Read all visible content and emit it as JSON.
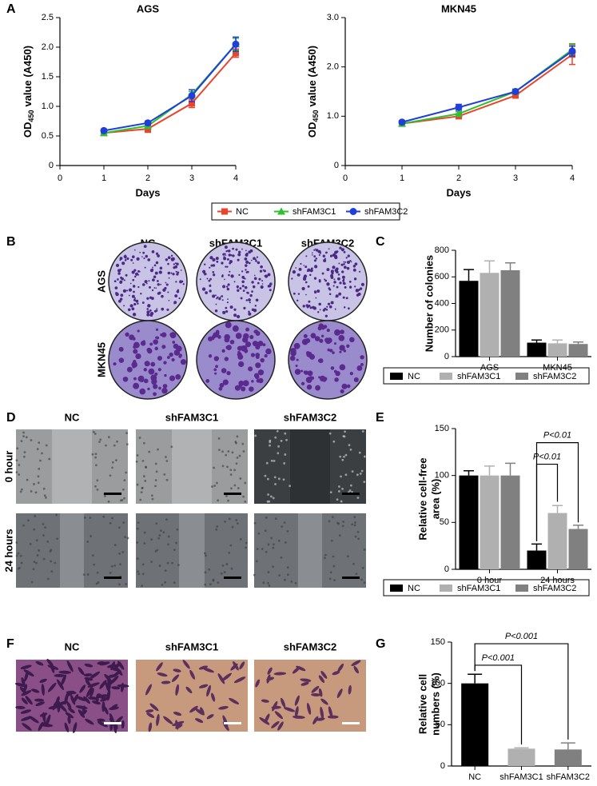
{
  "panel_labels": [
    "A",
    "B",
    "C",
    "D",
    "E",
    "F",
    "G"
  ],
  "chart_data": [
    {
      "type": "line",
      "title": "AGS",
      "xlabel": "Days",
      "ylabel": {
        "text": "OD",
        "subscript": "450",
        "rest": "value (A450)"
      },
      "x": [
        1,
        2,
        3,
        4
      ],
      "xlim": [
        0,
        4
      ],
      "xticks": [
        0,
        1,
        2,
        3,
        4
      ],
      "ylim": [
        0,
        2.5
      ],
      "yticks": [
        0,
        0.5,
        {
          "value": 1,
          "label": "1.0"
        },
        1.5,
        {
          "value": 2,
          "label": "2.0"
        },
        2.5
      ],
      "series": [
        {
          "name": "NC",
          "color": "#e8452c",
          "marker": "square",
          "values": [
            0.55,
            0.62,
            1.05,
            1.9
          ],
          "errors": [
            0.03,
            0.06,
            0.07,
            0.07
          ]
        },
        {
          "name": "shFAM3C1",
          "color": "#2ec02e",
          "marker": "triangle",
          "values": [
            0.55,
            0.67,
            1.2,
            2.05
          ],
          "errors": [
            0.02,
            0.03,
            0.05,
            0.1
          ]
        },
        {
          "name": "shFAM3C2",
          "color": "#1f3fd8",
          "marker": "circle",
          "values": [
            0.59,
            0.72,
            1.18,
            2.05
          ],
          "errors": [
            0.02,
            0.03,
            0.1,
            0.12
          ]
        }
      ],
      "legend": "bottom"
    },
    {
      "type": "line",
      "title": "MKN45",
      "xlabel": "Days",
      "ylabel": {
        "text": "OD",
        "subscript": "450",
        "rest": "value (A450)"
      },
      "x": [
        1,
        2,
        3,
        4
      ],
      "xlim": [
        0,
        4
      ],
      "xticks": [
        0,
        1,
        2,
        3,
        4
      ],
      "ylim": [
        0,
        3
      ],
      "yticks": [
        0,
        {
          "value": 1,
          "label": "1.0"
        },
        {
          "value": 2,
          "label": "2.0"
        },
        {
          "value": 3,
          "label": "3.0"
        }
      ],
      "series": [
        {
          "color": "#e8452c",
          "marker": "square",
          "values": [
            0.85,
            1.0,
            1.42,
            2.25
          ],
          "errors": [
            0.03,
            0.05,
            0.05,
            0.2
          ]
        },
        {
          "color": "#2ec02e",
          "marker": "triangle",
          "values": [
            0.85,
            1.05,
            1.5,
            2.35
          ],
          "errors": [
            0.02,
            0.04,
            0.05,
            0.12
          ]
        },
        {
          "color": "#1f3fd8",
          "marker": "circle",
          "values": [
            0.88,
            1.18,
            1.5,
            2.32
          ],
          "errors": [
            0.03,
            0.06,
            0.04,
            0.1
          ]
        }
      ]
    },
    {
      "type": "bar",
      "ylabel": [
        "Number of colonies"
      ],
      "categories": [
        "AGS",
        "MKN45"
      ],
      "ylim": [
        0,
        800
      ],
      "yticks": [
        0,
        200,
        400,
        600,
        800
      ],
      "series": [
        {
          "name": "NC",
          "color": "#000000",
          "values": [
            570,
            105
          ],
          "errors": [
            85,
            20
          ]
        },
        {
          "name": "shFAM3C1",
          "color": "#b0b0b0",
          "values": [
            630,
            100
          ],
          "errors": [
            90,
            25
          ]
        },
        {
          "name": "shFAM3C2",
          "color": "#808080",
          "values": [
            650,
            95
          ],
          "errors": [
            55,
            15
          ]
        }
      ],
      "legend": "bottom"
    },
    {
      "type": "bar",
      "ylabel": [
        "Relative cell-free",
        "area (%)"
      ],
      "categories": [
        "0 hour",
        "24 hours"
      ],
      "ylim": [
        0,
        150
      ],
      "yticks": [
        0,
        50,
        100,
        150
      ],
      "series": [
        {
          "name": "NC",
          "color": "#000000",
          "values": [
            100,
            20
          ],
          "errors": [
            5,
            7
          ]
        },
        {
          "name": "shFAM3C1",
          "color": "#b0b0b0",
          "values": [
            100,
            60
          ],
          "errors": [
            10,
            8
          ]
        },
        {
          "name": "shFAM3C2",
          "color": "#808080",
          "values": [
            100,
            43
          ],
          "errors": [
            13,
            4
          ]
        }
      ],
      "annotations": [
        "P<0.01",
        "P<0.01"
      ],
      "legend": "bottom"
    },
    {
      "type": "bar",
      "ylabel": [
        "Relative cell",
        "numbers (%)"
      ],
      "categories": [
        "NC",
        "shFAM3C1",
        "shFAM3C2"
      ],
      "ylim": [
        0,
        150
      ],
      "yticks": [
        0,
        50,
        100,
        150
      ],
      "series": [
        {
          "colors": [
            "#000000",
            "#b0b0b0",
            "#808080"
          ],
          "values": [
            100,
            21,
            20
          ],
          "errors": [
            11,
            1,
            8
          ]
        }
      ],
      "annotations": [
        "P<0.001",
        "P<0.001"
      ]
    }
  ],
  "panel_b": {
    "columns": [
      "NC",
      "shFAM3C1",
      "shFAM3C2"
    ],
    "rows": [
      "AGS",
      "MKN45"
    ]
  },
  "panel_d": {
    "columns": [
      "NC",
      "shFAM3C1",
      "shFAM3C2"
    ],
    "rows": [
      "0 hour",
      "24 hours"
    ]
  },
  "panel_f": {
    "columns": [
      "NC",
      "shFAM3C1",
      "shFAM3C2"
    ]
  }
}
